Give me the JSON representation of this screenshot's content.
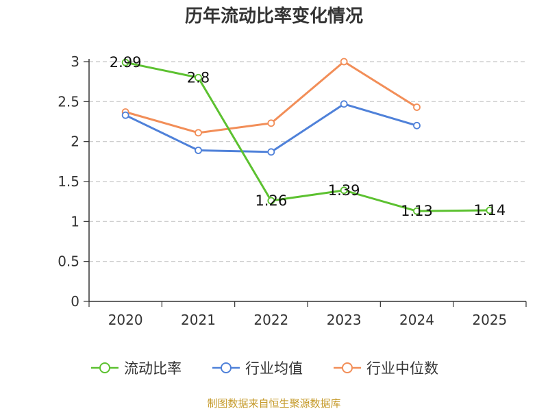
{
  "chart_data": {
    "type": "line",
    "title": "历年流动比率变化情况",
    "categories": [
      "2020",
      "2021",
      "2022",
      "2023",
      "2024",
      "2025"
    ],
    "ylim": [
      0,
      3
    ],
    "yticks": [
      0,
      0.5,
      1,
      1.5,
      2,
      2.5,
      3
    ],
    "ytick_labels": [
      "0",
      "0.5",
      "1",
      "1.5",
      "2",
      "2.5",
      "3"
    ],
    "grid": "horizontal-dashed",
    "legend_position": "bottom",
    "series": [
      {
        "name": "流动比率",
        "color": "#5cc130",
        "values": [
          2.99,
          2.8,
          1.26,
          1.39,
          1.13,
          1.14
        ],
        "labels": [
          "2.99",
          "2.8",
          "1.26",
          "1.39",
          "1.13",
          "1.14"
        ]
      },
      {
        "name": "行业均值",
        "color": "#4f81d9",
        "values": [
          2.33,
          1.89,
          1.87,
          2.47,
          2.2,
          null
        ]
      },
      {
        "name": "行业中位数",
        "color": "#f28e58",
        "values": [
          2.37,
          2.11,
          2.23,
          3.0,
          2.43,
          null
        ]
      }
    ]
  },
  "source_text": "制图数据来自恒生聚源数据库"
}
